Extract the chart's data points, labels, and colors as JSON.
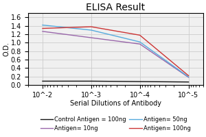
{
  "title": "ELISA Result",
  "ylabel": "O.D.",
  "xlabel": "Serial Dilutions of Antibody",
  "x_values": [
    0.01,
    0.001,
    0.0001,
    1e-05
  ],
  "lines": [
    {
      "label": "Control Antigen = 100ng",
      "color": "#111111",
      "y": [
        0.09,
        0.09,
        0.08,
        0.07
      ]
    },
    {
      "label": "Antigen= 10ng",
      "color": "#9966aa",
      "y": [
        1.27,
        1.12,
        0.97,
        0.18
      ]
    },
    {
      "label": "Antigen= 50ng",
      "color": "#55aadd",
      "y": [
        1.42,
        1.3,
        1.02,
        0.19
      ]
    },
    {
      "label": "Antigen= 100ng",
      "color": "#cc3333",
      "y": [
        1.34,
        1.38,
        1.18,
        0.22
      ]
    }
  ],
  "ylim": [
    0,
    1.7
  ],
  "yticks": [
    0,
    0.2,
    0.4,
    0.6,
    0.8,
    1.0,
    1.2,
    1.4,
    1.6
  ],
  "xtick_labels": [
    "10^-2",
    "10^-3",
    "10^-4",
    "10^-5"
  ],
  "background_color": "#f0f0f0",
  "grid_color": "#cccccc",
  "title_fontsize": 10,
  "axis_label_fontsize": 7,
  "tick_fontsize": 7,
  "legend_fontsize": 6
}
